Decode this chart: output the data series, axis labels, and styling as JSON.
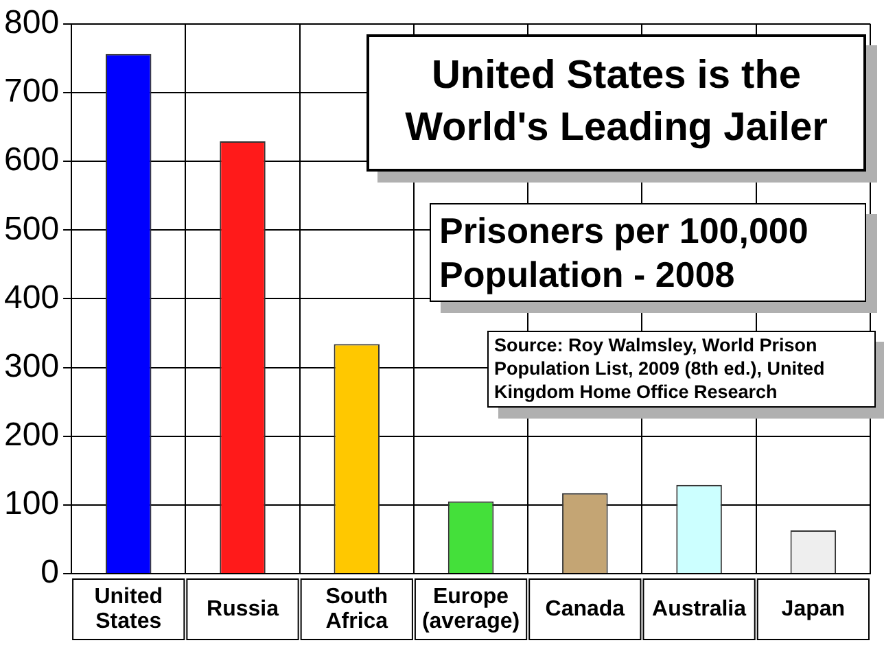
{
  "chart_data": {
    "type": "bar",
    "title": "United States is the World's Leading Jailer",
    "subtitle": "Prisoners per 100,000 Population - 2008",
    "annotations": [
      "Source: Roy Walmsley, World Prison Population List, 2009 (8th ed.), United Kingdom Home Office Research"
    ],
    "categories": [
      "United States",
      "Russia",
      "South Africa",
      "Europe (average)",
      "Canada",
      "Australia",
      "Japan"
    ],
    "values": [
      756,
      629,
      334,
      105,
      117,
      129,
      63
    ],
    "colors": [
      "#0000ff",
      "#ff1a1a",
      "#ffc800",
      "#44e03a",
      "#c4a574",
      "#ccffff",
      "#eeeeee"
    ],
    "ylim": [
      0,
      800
    ],
    "yticks": [
      0,
      100,
      200,
      300,
      400,
      500,
      600,
      700,
      800
    ],
    "grid": true,
    "legend": false
  }
}
